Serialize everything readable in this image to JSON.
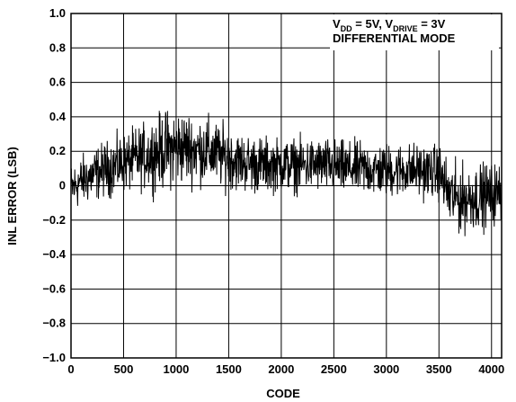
{
  "chart_data": {
    "type": "line",
    "title": "",
    "xlabel": "CODE",
    "ylabel": "INL ERROR (LSB)",
    "xlim": [
      0,
      4096
    ],
    "ylim": [
      -1.0,
      1.0
    ],
    "x_ticks": [
      0,
      500,
      1000,
      1500,
      2000,
      2500,
      3000,
      3500,
      4000
    ],
    "y_ticks": [
      1.0,
      0.8,
      0.6,
      0.4,
      0.2,
      0,
      -0.2,
      -0.4,
      -0.6,
      -0.8,
      -1.0
    ],
    "x_tick_labels": [
      "0",
      "500",
      "1000",
      "1500",
      "2000",
      "2500",
      "3000",
      "3500",
      "4000"
    ],
    "y_tick_labels": [
      "1.0",
      "0.8",
      "0.6",
      "0.4",
      "0.2",
      "0",
      "−0.2",
      "−0.4",
      "−0.6",
      "−0.8",
      "−1.0"
    ],
    "grid": true,
    "series_color": "#000000",
    "annotation": {
      "line1": {
        "v1": "V",
        "v1_sub": "DD",
        "eq1": " = 5V, ",
        "v2": "V",
        "v2_sub": "DRIVE",
        "eq2": " = 3V"
      },
      "line2": "DIFFERENTIAL MODE",
      "placement": "top-right"
    },
    "series": [
      {
        "description_points": "approximate envelope of INL noise across codes",
        "x": [
          0,
          100,
          200,
          300,
          400,
          500,
          600,
          700,
          800,
          900,
          1000,
          1100,
          1200,
          1300,
          1400,
          1500,
          1600,
          1700,
          1800,
          1900,
          2000,
          2100,
          2200,
          2300,
          2400,
          2500,
          2600,
          2700,
          2800,
          2900,
          3000,
          3100,
          3200,
          3300,
          3400,
          3500,
          3600,
          3700,
          3800,
          3900,
          4000,
          4095
        ],
        "center": [
          -0.02,
          0.03,
          0.06,
          0.09,
          0.11,
          0.13,
          0.15,
          0.17,
          0.19,
          0.21,
          0.22,
          0.22,
          0.21,
          0.2,
          0.18,
          0.16,
          0.14,
          0.13,
          0.12,
          0.12,
          0.12,
          0.12,
          0.12,
          0.12,
          0.12,
          0.11,
          0.1,
          0.1,
          0.1,
          0.09,
          0.09,
          0.09,
          0.09,
          0.09,
          0.08,
          0.08,
          -0.06,
          -0.08,
          -0.07,
          -0.06,
          -0.05,
          -0.04
        ],
        "amplitude": [
          0.13,
          0.13,
          0.14,
          0.14,
          0.15,
          0.15,
          0.16,
          0.17,
          0.19,
          0.2,
          0.2,
          0.19,
          0.18,
          0.18,
          0.17,
          0.16,
          0.15,
          0.15,
          0.15,
          0.14,
          0.14,
          0.14,
          0.14,
          0.14,
          0.14,
          0.14,
          0.14,
          0.14,
          0.14,
          0.14,
          0.14,
          0.14,
          0.14,
          0.14,
          0.14,
          0.14,
          0.18,
          0.18,
          0.17,
          0.17,
          0.16,
          0.16
        ]
      }
    ]
  }
}
